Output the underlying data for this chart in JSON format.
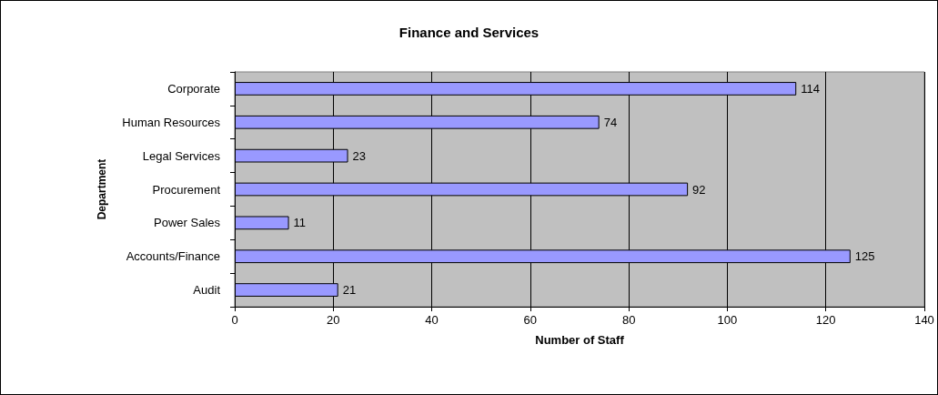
{
  "chart_data": {
    "type": "bar",
    "title": "Finance and Services",
    "xlabel": "Number of Staff",
    "ylabel": "Department",
    "orientation": "horizontal",
    "categories": [
      "Corporate",
      "Human Resources",
      "Legal Services",
      "Procurement",
      "Power Sales",
      "Accounts/Finance",
      "Audit"
    ],
    "values": [
      114,
      74,
      23,
      92,
      11,
      125,
      21
    ],
    "color": "#9999ff",
    "xlim": [
      0,
      140
    ],
    "xticks": [
      0,
      20,
      40,
      60,
      80,
      100,
      120,
      140
    ],
    "grid": "x",
    "data_labels": true
  }
}
